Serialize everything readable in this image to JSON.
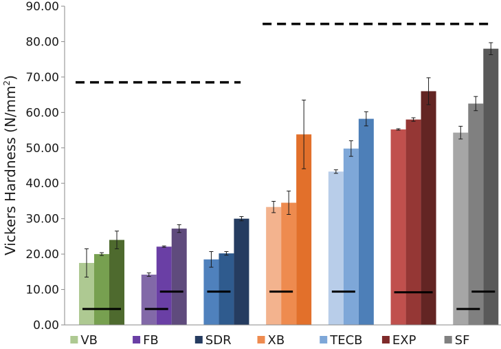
{
  "chart_data": {
    "type": "bar",
    "title": "",
    "xlabel": "",
    "ylabel": "Vickers Hardness (N/mm",
    "ylabel_superscript": "2",
    "ylabel_suffix": ")",
    "ylim": [
      0,
      90
    ],
    "ytick_labels": [
      "0.00",
      "10.00",
      "20.00",
      "30.00",
      "40.00",
      "50.00",
      "60.00",
      "70.00",
      "80.00",
      "90.00"
    ],
    "grid": false,
    "legend_position": "bottom",
    "groups": [
      {
        "name": "VB",
        "values": [
          17.5,
          20.0,
          24.0
        ],
        "errors": [
          4.0,
          0.4,
          2.5
        ],
        "colors": [
          "#aec992",
          "#77a050",
          "#4e6a2e"
        ],
        "min_hardness_lines": [
          {
            "y": 4.5,
            "bars": [
              0,
              2
            ]
          }
        ]
      },
      {
        "name": "FB",
        "values": [
          14.2,
          22.1,
          27.2
        ],
        "errors": [
          0.5,
          0.2,
          1.1
        ],
        "colors": [
          "#8269a8",
          "#6a3fa5",
          "#5f4b7d"
        ],
        "min_hardness_lines": [
          {
            "y": 4.5,
            "bars": [
              0,
              1
            ]
          },
          {
            "y": 9.4,
            "bars": [
              1,
              2
            ]
          }
        ]
      },
      {
        "name": "SDR",
        "values": [
          18.5,
          20.2,
          30.0
        ],
        "errors": [
          2.2,
          0.5,
          0.6
        ],
        "colors": [
          "#4f81bd",
          "#2f5b8e",
          "#253c60"
        ],
        "min_hardness_lines": [
          {
            "y": 9.4,
            "bars": [
              0,
              1
            ]
          }
        ]
      },
      {
        "name": "XB",
        "values": [
          33.3,
          34.5,
          53.8
        ],
        "errors": [
          1.6,
          3.3,
          9.7
        ],
        "colors": [
          "#f3b38e",
          "#ee8b4f",
          "#e2702b"
        ],
        "min_hardness_lines": [
          {
            "y": 9.4,
            "bars": [
              0,
              1
            ]
          }
        ]
      },
      {
        "name": "TECB",
        "values": [
          43.3,
          49.8,
          58.2
        ],
        "errors": [
          0.5,
          2.2,
          2.0
        ],
        "colors": [
          "#b8cde9",
          "#7ea7d8",
          "#4d7fb8"
        ],
        "min_hardness_lines": [
          {
            "y": 9.4,
            "bars": [
              0,
              1
            ]
          }
        ]
      },
      {
        "name": "EXP",
        "values": [
          55.2,
          58.0,
          66.0
        ],
        "errors": [
          0.2,
          0.5,
          3.8
        ],
        "colors": [
          "#c0504d",
          "#953735",
          "#632523"
        ],
        "min_hardness_lines": [
          {
            "y": 9.2,
            "bars": [
              0,
              2
            ]
          }
        ]
      },
      {
        "name": "SF",
        "values": [
          54.3,
          62.5,
          78.0
        ],
        "errors": [
          1.8,
          2.0,
          1.7
        ],
        "colors": [
          "#a6a6a6",
          "#808080",
          "#595959"
        ],
        "min_hardness_lines": [
          {
            "y": 4.5,
            "bars": [
              0,
              1
            ]
          },
          {
            "y": 9.4,
            "bars": [
              1,
              2
            ]
          }
        ]
      }
    ],
    "reference_lines": [
      {
        "y": 68.5,
        "from_group": 0,
        "to_group": 2,
        "style": "dashed"
      },
      {
        "y": 85.0,
        "from_group": 3,
        "to_group": 6,
        "style": "dashed"
      }
    ],
    "legend": [
      {
        "label": "VB",
        "color": "#aec992"
      },
      {
        "label": "FB",
        "color": "#6a3fa5"
      },
      {
        "label": "SDR",
        "color": "#253c60"
      },
      {
        "label": "XB",
        "color": "#ee8b4f"
      },
      {
        "label": "TECB",
        "color": "#7ea7d8"
      },
      {
        "label": "EXP",
        "color": "#7f2a2a"
      },
      {
        "label": "SF",
        "color": "#808080"
      }
    ]
  }
}
